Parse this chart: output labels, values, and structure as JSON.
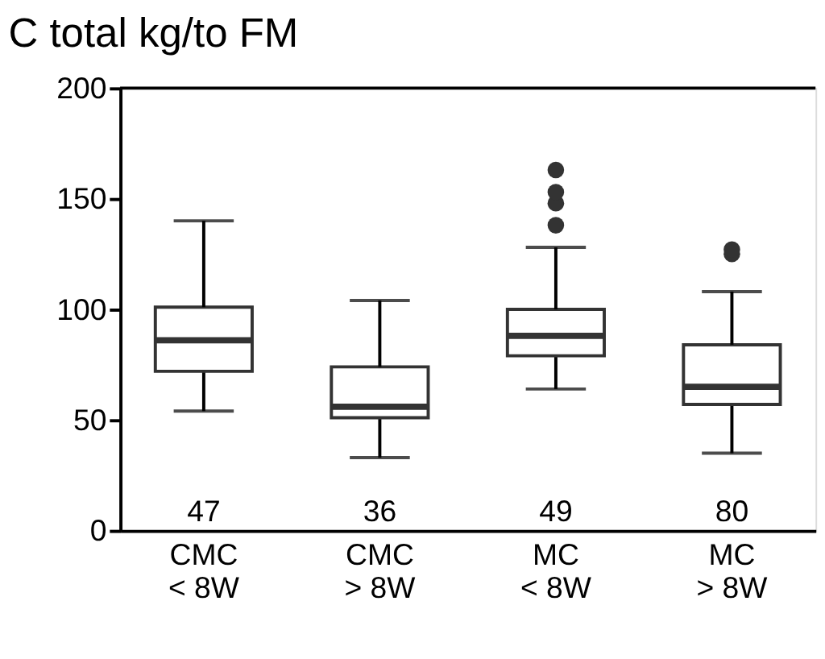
{
  "chart_data": {
    "type": "box",
    "title": "C total kg/to FM",
    "categories": [
      "CMC\n< 8W",
      "CMC\n> 8W",
      "MC\n< 8W",
      "MC\n> 8W"
    ],
    "boxes": [
      {
        "low": 54,
        "q1": 72,
        "median": 86,
        "q3": 101,
        "high": 140
      },
      {
        "low": 33,
        "q1": 51,
        "median": 56,
        "q3": 74,
        "high": 104
      },
      {
        "low": 64,
        "q1": 79,
        "median": 88,
        "q3": 100,
        "high": 128,
        "outliers": [
          138,
          148,
          153,
          163
        ]
      },
      {
        "low": 35,
        "q1": 57,
        "median": 65,
        "q3": 84,
        "high": 108,
        "outliers": [
          125,
          127
        ]
      }
    ],
    "annotations": [
      "47",
      "36",
      "49",
      "80"
    ],
    "ylim": [
      0,
      200
    ],
    "yticks": [
      0,
      50,
      100,
      150,
      200
    ],
    "grid": false
  }
}
